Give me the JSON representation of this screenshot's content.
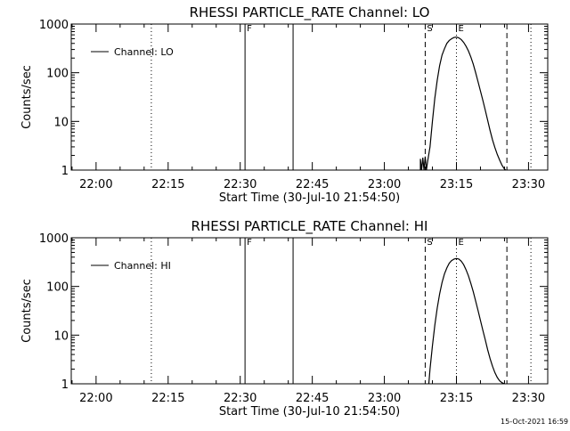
{
  "footer_timestamp": "15-Oct-2021 16:59",
  "chart_data": [
    {
      "type": "line",
      "title": "RHESSI PARTICLE_RATE Channel: LO",
      "xlabel": "Start Time (30-Jul-10 21:54:50)",
      "ylabel": "Counts/sec",
      "xlim": [
        "21:54:50",
        "23:34:00"
      ],
      "ylim": [
        1,
        1000
      ],
      "yscale": "log",
      "x_ticks": [
        "22:00",
        "22:15",
        "22:30",
        "22:45",
        "23:00",
        "23:15",
        "23:30"
      ],
      "y_ticks": [
        "1",
        "10",
        "100",
        "1000"
      ],
      "legend": {
        "position": "top-left",
        "entries": [
          "Channel: LO"
        ]
      },
      "markers": [
        {
          "time": "22:11:30",
          "style": "dotted",
          "label": ""
        },
        {
          "time": "22:31:00",
          "style": "solid",
          "label": "F"
        },
        {
          "time": "22:41:00",
          "style": "solid",
          "label": ""
        },
        {
          "time": "23:08:30",
          "style": "dashed",
          "label": "S"
        },
        {
          "time": "23:15:00",
          "style": "dotted",
          "label": "E"
        },
        {
          "time": "23:25:30",
          "style": "dashed",
          "label": ""
        },
        {
          "time": "23:30:30",
          "style": "dotted",
          "label": ""
        }
      ],
      "series": [
        {
          "name": "Channel: LO",
          "x": [
            "23:07:30",
            "23:07:30",
            "23:07:45",
            "23:08:00",
            "23:08:15",
            "23:08:30",
            "23:08:45",
            "23:09:00",
            "23:09:30",
            "23:10:00",
            "23:10:30",
            "23:11:00",
            "23:11:30",
            "23:12:00",
            "23:12:30",
            "23:13:00",
            "23:13:30",
            "23:14:00",
            "23:14:30",
            "23:15:00",
            "23:15:30",
            "23:16:00",
            "23:16:30",
            "23:17:00",
            "23:17:30",
            "23:18:00",
            "23:18:30",
            "23:19:00",
            "23:19:30",
            "23:20:00",
            "23:20:30",
            "23:21:00",
            "23:21:30",
            "23:22:00",
            "23:22:30",
            "23:23:00",
            "23:23:30",
            "23:24:00",
            "23:24:30",
            "23:25:00",
            "23:25:15"
          ],
          "values": [
            1,
            1.7,
            1,
            1.8,
            1,
            1.9,
            1,
            1.5,
            3,
            10,
            30,
            70,
            140,
            230,
            310,
            400,
            460,
            500,
            530,
            540,
            520,
            480,
            420,
            350,
            280,
            210,
            150,
            100,
            65,
            42,
            27,
            17,
            10.5,
            6.5,
            4.2,
            2.9,
            2.1,
            1.6,
            1.25,
            1.05,
            1
          ]
        }
      ]
    },
    {
      "type": "line",
      "title": "RHESSI PARTICLE_RATE Channel: HI",
      "xlabel": "Start Time (30-Jul-10 21:54:50)",
      "ylabel": "Counts/sec",
      "xlim": [
        "21:54:50",
        "23:34:00"
      ],
      "ylim": [
        1,
        1000
      ],
      "yscale": "log",
      "x_ticks": [
        "22:00",
        "22:15",
        "22:30",
        "22:45",
        "23:00",
        "23:15",
        "23:30"
      ],
      "y_ticks": [
        "1",
        "10",
        "100",
        "1000"
      ],
      "legend": {
        "position": "top-left",
        "entries": [
          "Channel: HI"
        ]
      },
      "markers": [
        {
          "time": "22:11:30",
          "style": "dotted",
          "label": ""
        },
        {
          "time": "22:31:00",
          "style": "solid",
          "label": "F"
        },
        {
          "time": "22:41:00",
          "style": "solid",
          "label": ""
        },
        {
          "time": "23:08:30",
          "style": "dashed",
          "label": "S"
        },
        {
          "time": "23:15:00",
          "style": "dotted",
          "label": "E"
        },
        {
          "time": "23:25:30",
          "style": "dashed",
          "label": ""
        },
        {
          "time": "23:30:30",
          "style": "dotted",
          "label": ""
        }
      ],
      "series": [
        {
          "name": "Channel: HI",
          "x": [
            "23:09:15",
            "23:09:30",
            "23:10:00",
            "23:10:30",
            "23:11:00",
            "23:11:30",
            "23:12:00",
            "23:12:30",
            "23:13:00",
            "23:13:30",
            "23:14:00",
            "23:14:30",
            "23:15:00",
            "23:15:30",
            "23:16:00",
            "23:16:30",
            "23:17:00",
            "23:17:30",
            "23:18:00",
            "23:18:30",
            "23:19:00",
            "23:19:30",
            "23:20:00",
            "23:20:30",
            "23:21:00",
            "23:21:30",
            "23:22:00",
            "23:22:30",
            "23:23:00",
            "23:23:30",
            "23:24:00",
            "23:24:30",
            "23:25:00"
          ],
          "values": [
            1,
            2,
            6,
            16,
            36,
            70,
            120,
            180,
            240,
            300,
            340,
            365,
            375,
            365,
            330,
            280,
            220,
            165,
            115,
            78,
            50,
            32,
            20,
            12.5,
            8,
            5,
            3.3,
            2.3,
            1.7,
            1.35,
            1.15,
            1.05,
            1
          ]
        }
      ]
    }
  ]
}
